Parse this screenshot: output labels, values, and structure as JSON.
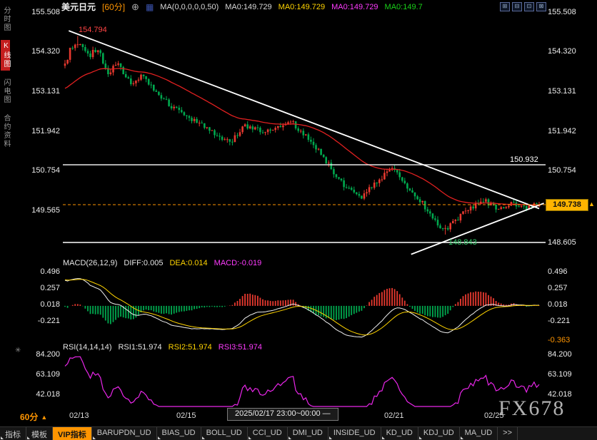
{
  "window": {
    "watermark": "FX678"
  },
  "header": {
    "symbol": "美元日元",
    "period": "[60分]",
    "ma_settings": "MA(0,0,0,0,0,50)",
    "ma_values": [
      "MA0:149.729",
      "MA0:149.729",
      "MA0:149.729",
      "MA0:149.7"
    ]
  },
  "icons": {
    "add_indicator": "⊕",
    "indicator_chip": "▦",
    "window_controls": [
      "⊞",
      "⊟",
      "⊡",
      "⊠"
    ],
    "period_arrow": "▲",
    "price_arrow": "▲",
    "panel_flower": "✳"
  },
  "sidebar": {
    "items": [
      "分时图",
      "K线图",
      "闪电图",
      "合约资料"
    ],
    "active": "K线图"
  },
  "price_axis": {
    "left": [
      "155.508",
      "154.320",
      "153.131",
      "151.942",
      "150.754",
      "149.565"
    ],
    "right": [
      "155.508",
      "154.320",
      "153.131",
      "151.942",
      "150.754",
      "148.605"
    ]
  },
  "annotations": {
    "swing_high": "154.794",
    "resistance": "150.932",
    "swing_low": "148.843",
    "current_price": "149.738"
  },
  "macd_panel": {
    "title": "MACD(26,12,9)",
    "diff": "DIFF:0.005",
    "dea": "DEA:0.014",
    "macd": "MACD:-0.019",
    "axis": [
      "0.496",
      "0.257",
      "0.018",
      "-0.221"
    ],
    "axis_bottom": "-0.363"
  },
  "rsi_panel": {
    "title": "RSI(14,14,14)",
    "rsi1": "RSI1:51.974",
    "rsi2": "RSI2:51.974",
    "rsi3": "RSI3:51.974",
    "axis": [
      "84.200",
      "63.109",
      "42.018"
    ]
  },
  "time_axis": {
    "period_badge": "60分",
    "labels": [
      "02/13",
      "02/15",
      "02/21",
      "02/25"
    ],
    "crosshair_tooltip": "2025/02/17 23:00~00:00 —"
  },
  "toolbar": {
    "items": [
      "指标",
      "模板",
      "VIP指标",
      "BARUPDN_UD",
      "BIAS_UD",
      "BOLL_UD",
      "CCI_UD",
      "DMI_UD",
      "INSIDE_UD",
      "KD_UD",
      "KDJ_UD",
      "MA_UD",
      ">>"
    ]
  },
  "colors": {
    "up": "#e8392f",
    "down": "#00a84e",
    "ma": "#e02020",
    "diff": "#f0f0f0",
    "dea": "#ffd400",
    "rsi": "#e926e9",
    "trendline": "#ffffff",
    "current_price_line": "#ff9500",
    "tag_bg": "#ffb400",
    "accent_orange": "#ff9500"
  },
  "chart_data": {
    "type": "candlestick",
    "title": "USD/JPY 60min",
    "interval": "60min",
    "num_bars": 188,
    "warmup_bars": 40,
    "warmup_range": [
      151.8,
      154.2
    ],
    "high": 154.794,
    "low": 148.843,
    "current_price": 149.738,
    "y_axis": {
      "max": 155.508,
      "min": 148.605,
      "ticks": [
        155.508,
        154.32,
        153.131,
        151.942,
        150.754,
        149.565,
        148.605
      ]
    },
    "price_keyframes": [
      [
        0,
        153.9
      ],
      [
        0.012,
        154.45
      ],
      [
        0.03,
        154.6
      ],
      [
        0.05,
        154.15
      ],
      [
        0.068,
        154.45
      ],
      [
        0.09,
        153.65
      ],
      [
        0.11,
        153.95
      ],
      [
        0.14,
        153.35
      ],
      [
        0.165,
        153.6
      ],
      [
        0.2,
        152.95
      ],
      [
        0.24,
        152.55
      ],
      [
        0.28,
        152.2
      ],
      [
        0.32,
        151.8
      ],
      [
        0.35,
        151.6
      ],
      [
        0.38,
        152.1
      ],
      [
        0.42,
        151.9
      ],
      [
        0.455,
        152.05
      ],
      [
        0.475,
        152.25
      ],
      [
        0.5,
        151.9
      ],
      [
        0.53,
        151.45
      ],
      [
        0.56,
        150.85
      ],
      [
        0.595,
        150.2
      ],
      [
        0.625,
        149.95
      ],
      [
        0.655,
        150.4
      ],
      [
        0.69,
        150.85
      ],
      [
        0.715,
        150.4
      ],
      [
        0.745,
        149.95
      ],
      [
        0.775,
        149.35
      ],
      [
        0.8,
        148.98
      ],
      [
        0.825,
        149.3
      ],
      [
        0.855,
        149.65
      ],
      [
        0.885,
        149.85
      ],
      [
        0.915,
        149.6
      ],
      [
        0.945,
        149.8
      ],
      [
        0.97,
        149.65
      ],
      [
        1,
        149.74
      ]
    ],
    "hlines": [
      {
        "price": 150.932,
        "label": "150.932"
      },
      {
        "price": 148.605,
        "label": "148.605"
      }
    ],
    "trendlines": [
      {
        "from": [
          0.008,
          154.95
        ],
        "to": [
          1.0,
          149.62
        ]
      },
      {
        "from": [
          0.73,
          148.25
        ],
        "to": [
          1.01,
          149.78
        ]
      }
    ],
    "ma_periods": [
      50
    ],
    "indicator_values": {
      "ma0": 149.729,
      "diff": 0.005,
      "dea": 0.014,
      "macd": -0.019,
      "rsi": 51.974
    },
    "macd": {
      "fast": 26,
      "slow": 12,
      "signal": 9,
      "axis_max": 0.496,
      "axis_min": -0.363,
      "ticks": [
        0.496,
        0.257,
        0.018,
        -0.221,
        -0.363
      ]
    },
    "rsi": {
      "period": 14,
      "axis_max": 84.2,
      "axis_min": 42.018,
      "ticks": [
        84.2,
        63.109,
        42.018
      ]
    },
    "x_tick_labels": [
      "02/13",
      "02/15",
      "02/21",
      "02/25"
    ]
  }
}
